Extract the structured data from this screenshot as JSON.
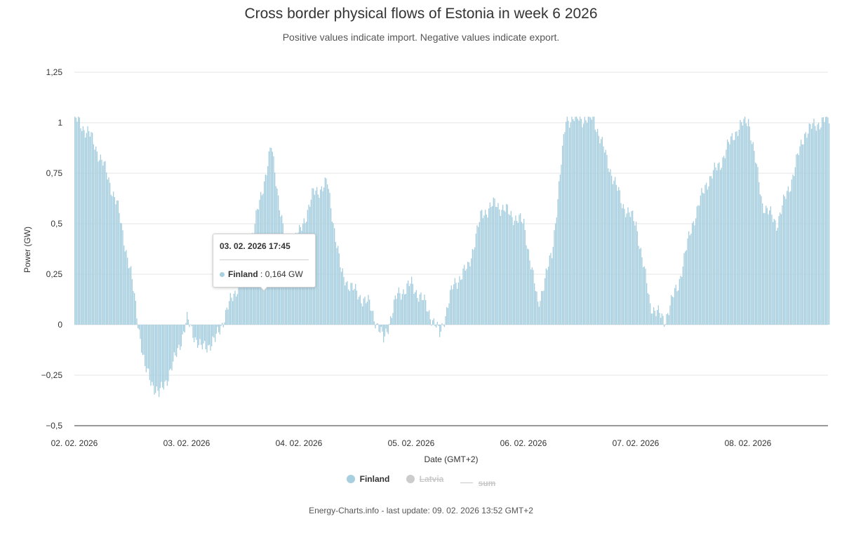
{
  "title": "Cross border physical flows of Estonia in week 6 2026",
  "subtitle": "Positive values indicate import. Negative values indicate export.",
  "tooltip": {
    "date": "03. 02. 2026 17:45",
    "series": "Finland",
    "value": "0,164 GW"
  },
  "legend": [
    {
      "label": "Finland",
      "color": "#a8cfe0",
      "active": true,
      "marker": "dot"
    },
    {
      "label": "Latvia",
      "color": "#cccccc",
      "active": false,
      "marker": "dot"
    },
    {
      "label": "sum",
      "color": "#cccccc",
      "active": false,
      "marker": "line"
    }
  ],
  "credit": "Energy-Charts.info - last update: 09. 02. 2026 13:52 GMT+2",
  "chart_data": {
    "type": "bar",
    "title": "Cross border physical flows of Estonia in week 6 2026",
    "subtitle": "Positive values indicate import. Negative values indicate export.",
    "xlabel": "Date (GMT+2)",
    "ylabel": "Power (GW)",
    "ylim": [
      -0.5,
      1.25
    ],
    "yticks": [
      "1,25",
      "1",
      "0,75",
      "0,5",
      "0,25",
      "0",
      "−0,25",
      "−0,5"
    ],
    "ytick_values": [
      1.25,
      1,
      0.75,
      0.5,
      0.25,
      0,
      -0.25,
      -0.5
    ],
    "xticks": [
      "02. 02. 2026",
      "03. 02. 2026",
      "04. 02. 2026",
      "05. 02. 2026",
      "06. 02. 2026",
      "07. 02. 2026",
      "08. 02. 2026"
    ],
    "xrange_days": [
      0,
      6.72
    ],
    "grid": true,
    "legend_position": "bottom-center",
    "series": [
      {
        "name": "Finland",
        "color": "#a8cfe0",
        "x_days": [
          0,
          0.125,
          0.25,
          0.375,
          0.5,
          0.625,
          0.75,
          0.875,
          1,
          1.125,
          1.25,
          1.375,
          1.5,
          1.625,
          1.75,
          1.875,
          2,
          2.125,
          2.25,
          2.375,
          2.5,
          2.625,
          2.75,
          2.875,
          3,
          3.125,
          3.25,
          3.375,
          3.5,
          3.625,
          3.75,
          3.875,
          4,
          4.125,
          4.25,
          4.375,
          4.5,
          4.625,
          4.75,
          4.875,
          5,
          5.125,
          5.25,
          5.375,
          5.5,
          5.625,
          5.75,
          5.875,
          6,
          6.125,
          6.25,
          6.375,
          6.5,
          6.625,
          6.72
        ],
        "values": [
          1.02,
          0.95,
          0.8,
          0.6,
          0.25,
          -0.22,
          -0.35,
          -0.2,
          0.02,
          -0.12,
          -0.08,
          0.1,
          0.25,
          0.55,
          0.88,
          0.4,
          0.45,
          0.65,
          0.7,
          0.25,
          0.16,
          0.1,
          -0.08,
          0.15,
          0.2,
          0.1,
          -0.05,
          0.2,
          0.28,
          0.55,
          0.6,
          0.55,
          0.5,
          0.1,
          0.35,
          1.02,
          1.02,
          1.02,
          0.8,
          0.6,
          0.5,
          0.1,
          0.02,
          0.2,
          0.5,
          0.7,
          0.8,
          0.95,
          1.02,
          0.6,
          0.5,
          0.7,
          0.95,
          1.0,
          1.02
        ]
      }
    ]
  }
}
